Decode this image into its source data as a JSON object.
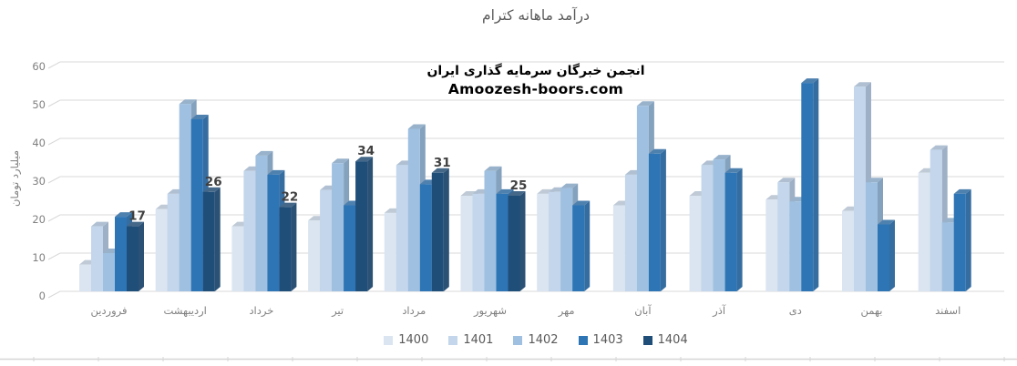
{
  "chart": {
    "title": "درآمد ماهانه کترام",
    "watermark": {
      "line1": "انجمن خبرگان سرمایه گذاری ایران",
      "line2": "Amoozesh-boors.com"
    }
  },
  "chart_data": {
    "type": "bar",
    "style": "3d-clustered-column",
    "title": "درآمد ماهانه کترام",
    "xlabel": "",
    "ylabel": "میلیارد تومان",
    "ylim": [
      0,
      60
    ],
    "ytick_step": 10,
    "yticks": [
      0,
      10,
      20,
      30,
      40,
      50,
      60
    ],
    "grid": true,
    "legend_position": "bottom",
    "categories": [
      "فروردین",
      "اردیبهشت",
      "خرداد",
      "تیر",
      "مرداد",
      "شهریور",
      "مهر",
      "آبان",
      "آذر",
      "دی",
      "بهمن",
      "اسفند"
    ],
    "series": [
      {
        "name": "1400",
        "color": "#dbe5f1",
        "data_labels": false,
        "values": [
          7,
          21.5,
          17,
          18.5,
          20.5,
          25,
          25.5,
          22.5,
          25,
          24,
          21,
          31
        ]
      },
      {
        "name": "1401",
        "color": "#c3d6ec",
        "data_labels": false,
        "values": [
          17,
          25.5,
          31.5,
          26.5,
          33,
          25.5,
          26,
          30.5,
          33,
          28.5,
          53.5,
          37
        ]
      },
      {
        "name": "1402",
        "color": "#9fc0e0",
        "data_labels": false,
        "values": [
          10,
          49,
          35.5,
          33.5,
          42.5,
          31.5,
          27,
          48.5,
          34.5,
          23.5,
          28.5,
          18
        ]
      },
      {
        "name": "1403",
        "color": "#2e75b6",
        "data_labels": false,
        "values": [
          19.5,
          45,
          30.5,
          22.5,
          28,
          25.5,
          22.5,
          36,
          31,
          54.5,
          17.5,
          25.5
        ]
      },
      {
        "name": "1404",
        "color": "#1f4e79",
        "data_labels": true,
        "values": [
          17,
          26,
          22,
          34,
          31,
          25,
          null,
          null,
          null,
          null,
          null,
          null
        ]
      }
    ],
    "colors": {
      "gridline": "#d9d9d9",
      "axis_text": "#808080",
      "title_text": "#595959",
      "data_label_text": "#404040",
      "bottom_ruler": "#d6d6d6"
    }
  }
}
